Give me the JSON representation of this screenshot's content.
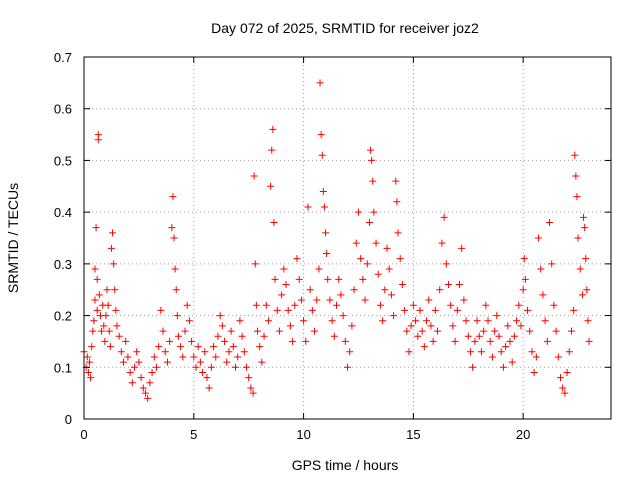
{
  "chart_data": {
    "type": "scatter",
    "title": "Day 072 of 2025, SRMTID for receiver joz2",
    "xlabel": "GPS time / hours",
    "ylabel": "SRMTID / TECUs",
    "xlim": [
      0,
      24
    ],
    "ylim": [
      0,
      0.7
    ],
    "xticks": [
      0,
      5,
      10,
      15,
      20
    ],
    "yticks": [
      0,
      0.1,
      0.2,
      0.3,
      0.4,
      0.5,
      0.6,
      0.7
    ],
    "xtick_labels": [
      "0",
      "5",
      "10",
      "15",
      "20"
    ],
    "ytick_labels": [
      "0",
      "0.1",
      "0.2",
      "0.3",
      "0.4",
      "0.5",
      "0.6",
      "0.7"
    ],
    "grid": true,
    "marker": "+",
    "color": "#ff0000",
    "series": [
      {
        "name": "SRMTID",
        "points": [
          [
            0.0,
            0.13
          ],
          [
            0.1,
            0.1
          ],
          [
            0.15,
            0.12
          ],
          [
            0.2,
            0.09
          ],
          [
            0.25,
            0.11
          ],
          [
            0.3,
            0.08
          ],
          [
            0.35,
            0.14
          ],
          [
            0.4,
            0.17
          ],
          [
            0.45,
            0.19
          ],
          [
            0.5,
            0.23
          ],
          [
            0.5,
            0.29
          ],
          [
            0.55,
            0.37
          ],
          [
            0.6,
            0.27
          ],
          [
            0.6,
            0.21
          ],
          [
            0.65,
            0.55
          ],
          [
            0.65,
            0.54
          ],
          [
            0.7,
            0.24
          ],
          [
            0.75,
            0.2
          ],
          [
            0.8,
            0.17
          ],
          [
            0.85,
            0.22
          ],
          [
            0.9,
            0.18
          ],
          [
            0.95,
            0.15
          ],
          [
            1.0,
            0.2
          ],
          [
            1.05,
            0.25
          ],
          [
            1.1,
            0.22
          ],
          [
            1.15,
            0.17
          ],
          [
            1.2,
            0.14
          ],
          [
            1.25,
            0.33
          ],
          [
            1.3,
            0.36
          ],
          [
            1.35,
            0.3
          ],
          [
            1.4,
            0.25
          ],
          [
            1.45,
            0.21
          ],
          [
            1.5,
            0.18
          ],
          [
            1.6,
            0.16
          ],
          [
            1.7,
            0.13
          ],
          [
            1.8,
            0.11
          ],
          [
            1.9,
            0.15
          ],
          [
            2.0,
            0.12
          ],
          [
            2.1,
            0.09
          ],
          [
            2.2,
            0.07
          ],
          [
            2.3,
            0.1
          ],
          [
            2.4,
            0.13
          ],
          [
            2.5,
            0.11
          ],
          [
            2.6,
            0.08
          ],
          [
            2.7,
            0.06
          ],
          [
            2.8,
            0.05
          ],
          [
            2.9,
            0.04
          ],
          [
            3.0,
            0.07
          ],
          [
            3.1,
            0.09
          ],
          [
            3.2,
            0.12
          ],
          [
            3.3,
            0.1
          ],
          [
            3.4,
            0.14
          ],
          [
            3.5,
            0.21
          ],
          [
            3.6,
            0.17
          ],
          [
            3.7,
            0.13
          ],
          [
            3.8,
            0.11
          ],
          [
            3.9,
            0.15
          ],
          [
            4.0,
            0.37
          ],
          [
            4.05,
            0.43
          ],
          [
            4.1,
            0.35
          ],
          [
            4.15,
            0.29
          ],
          [
            4.2,
            0.25
          ],
          [
            4.25,
            0.2
          ],
          [
            4.3,
            0.16
          ],
          [
            4.4,
            0.14
          ],
          [
            4.5,
            0.12
          ],
          [
            4.6,
            0.17
          ],
          [
            4.7,
            0.22
          ],
          [
            4.8,
            0.19
          ],
          [
            4.9,
            0.15
          ],
          [
            5.0,
            0.12
          ],
          [
            5.1,
            0.1
          ],
          [
            5.2,
            0.14
          ],
          [
            5.3,
            0.11
          ],
          [
            5.4,
            0.09
          ],
          [
            5.5,
            0.13
          ],
          [
            5.6,
            0.08
          ],
          [
            5.7,
            0.06
          ],
          [
            5.8,
            0.1
          ],
          [
            5.9,
            0.14
          ],
          [
            6.0,
            0.12
          ],
          [
            6.1,
            0.16
          ],
          [
            6.2,
            0.2
          ],
          [
            6.3,
            0.18
          ],
          [
            6.4,
            0.15
          ],
          [
            6.5,
            0.11
          ],
          [
            6.6,
            0.13
          ],
          [
            6.7,
            0.17
          ],
          [
            6.8,
            0.14
          ],
          [
            6.9,
            0.1
          ],
          [
            7.0,
            0.12
          ],
          [
            7.1,
            0.19
          ],
          [
            7.2,
            0.16
          ],
          [
            7.3,
            0.13
          ],
          [
            7.4,
            0.1
          ],
          [
            7.5,
            0.08
          ],
          [
            7.6,
            0.06
          ],
          [
            7.7,
            0.05
          ],
          [
            7.75,
            0.47
          ],
          [
            7.8,
            0.3
          ],
          [
            7.85,
            0.22
          ],
          [
            7.9,
            0.17
          ],
          [
            8.0,
            0.14
          ],
          [
            8.1,
            0.11
          ],
          [
            8.2,
            0.16
          ],
          [
            8.3,
            0.22
          ],
          [
            8.4,
            0.19
          ],
          [
            8.5,
            0.45
          ],
          [
            8.55,
            0.52
          ],
          [
            8.6,
            0.56
          ],
          [
            8.65,
            0.38
          ],
          [
            8.7,
            0.27
          ],
          [
            8.8,
            0.21
          ],
          [
            8.9,
            0.17
          ],
          [
            9.0,
            0.24
          ],
          [
            9.1,
            0.29
          ],
          [
            9.2,
            0.26
          ],
          [
            9.3,
            0.21
          ],
          [
            9.4,
            0.18
          ],
          [
            9.5,
            0.15
          ],
          [
            9.6,
            0.22
          ],
          [
            9.7,
            0.31
          ],
          [
            9.8,
            0.27
          ],
          [
            9.9,
            0.23
          ],
          [
            10.0,
            0.19
          ],
          [
            10.1,
            0.15
          ],
          [
            10.2,
            0.41
          ],
          [
            10.3,
            0.25
          ],
          [
            10.4,
            0.21
          ],
          [
            10.5,
            0.17
          ],
          [
            10.6,
            0.23
          ],
          [
            10.7,
            0.29
          ],
          [
            10.75,
            0.65
          ],
          [
            10.8,
            0.55
          ],
          [
            10.85,
            0.51
          ],
          [
            10.9,
            0.44
          ],
          [
            10.95,
            0.41
          ],
          [
            11.0,
            0.36
          ],
          [
            11.05,
            0.32
          ],
          [
            11.1,
            0.27
          ],
          [
            11.2,
            0.23
          ],
          [
            11.3,
            0.19
          ],
          [
            11.4,
            0.16
          ],
          [
            11.5,
            0.22
          ],
          [
            11.6,
            0.27
          ],
          [
            11.7,
            0.24
          ],
          [
            11.8,
            0.2
          ],
          [
            11.9,
            0.15
          ],
          [
            12.0,
            0.1
          ],
          [
            12.1,
            0.13
          ],
          [
            12.2,
            0.18
          ],
          [
            12.3,
            0.25
          ],
          [
            12.4,
            0.34
          ],
          [
            12.5,
            0.4
          ],
          [
            12.6,
            0.31
          ],
          [
            12.7,
            0.27
          ],
          [
            12.8,
            0.23
          ],
          [
            12.9,
            0.3
          ],
          [
            13.0,
            0.38
          ],
          [
            13.05,
            0.52
          ],
          [
            13.1,
            0.5
          ],
          [
            13.15,
            0.46
          ],
          [
            13.2,
            0.4
          ],
          [
            13.3,
            0.34
          ],
          [
            13.4,
            0.28
          ],
          [
            13.5,
            0.22
          ],
          [
            13.6,
            0.19
          ],
          [
            13.7,
            0.25
          ],
          [
            13.8,
            0.33
          ],
          [
            13.9,
            0.29
          ],
          [
            14.0,
            0.24
          ],
          [
            14.1,
            0.2
          ],
          [
            14.2,
            0.46
          ],
          [
            14.25,
            0.42
          ],
          [
            14.3,
            0.36
          ],
          [
            14.4,
            0.31
          ],
          [
            14.5,
            0.26
          ],
          [
            14.6,
            0.21
          ],
          [
            14.7,
            0.17
          ],
          [
            14.8,
            0.13
          ],
          [
            14.9,
            0.18
          ],
          [
            15.0,
            0.22
          ],
          [
            15.1,
            0.19
          ],
          [
            15.2,
            0.16
          ],
          [
            15.3,
            0.21
          ],
          [
            15.4,
            0.17
          ],
          [
            15.5,
            0.14
          ],
          [
            15.6,
            0.19
          ],
          [
            15.7,
            0.23
          ],
          [
            15.8,
            0.18
          ],
          [
            15.9,
            0.15
          ],
          [
            16.0,
            0.21
          ],
          [
            16.1,
            0.17
          ],
          [
            16.2,
            0.25
          ],
          [
            16.3,
            0.34
          ],
          [
            16.4,
            0.39
          ],
          [
            16.5,
            0.3
          ],
          [
            16.6,
            0.26
          ],
          [
            16.7,
            0.22
          ],
          [
            16.8,
            0.18
          ],
          [
            16.9,
            0.15
          ],
          [
            17.0,
            0.21
          ],
          [
            17.1,
            0.26
          ],
          [
            17.2,
            0.33
          ],
          [
            17.3,
            0.23
          ],
          [
            17.4,
            0.19
          ],
          [
            17.5,
            0.16
          ],
          [
            17.6,
            0.13
          ],
          [
            17.7,
            0.1
          ],
          [
            17.8,
            0.15
          ],
          [
            17.9,
            0.19
          ],
          [
            18.0,
            0.16
          ],
          [
            18.1,
            0.13
          ],
          [
            18.2,
            0.17
          ],
          [
            18.3,
            0.22
          ],
          [
            18.4,
            0.19
          ],
          [
            18.5,
            0.15
          ],
          [
            18.6,
            0.12
          ],
          [
            18.7,
            0.17
          ],
          [
            18.8,
            0.2
          ],
          [
            18.9,
            0.16
          ],
          [
            19.0,
            0.13
          ],
          [
            19.1,
            0.1
          ],
          [
            19.2,
            0.14
          ],
          [
            19.3,
            0.18
          ],
          [
            19.4,
            0.15
          ],
          [
            19.5,
            0.11
          ],
          [
            19.6,
            0.16
          ],
          [
            19.7,
            0.19
          ],
          [
            19.8,
            0.22
          ],
          [
            19.9,
            0.18
          ],
          [
            20.0,
            0.25
          ],
          [
            20.05,
            0.31
          ],
          [
            20.1,
            0.27
          ],
          [
            20.2,
            0.21
          ],
          [
            20.3,
            0.17
          ],
          [
            20.4,
            0.13
          ],
          [
            20.5,
            0.09
          ],
          [
            20.6,
            0.12
          ],
          [
            20.7,
            0.35
          ],
          [
            20.8,
            0.29
          ],
          [
            20.9,
            0.24
          ],
          [
            21.0,
            0.19
          ],
          [
            21.1,
            0.15
          ],
          [
            21.2,
            0.38
          ],
          [
            21.3,
            0.3
          ],
          [
            21.4,
            0.22
          ],
          [
            21.5,
            0.17
          ],
          [
            21.6,
            0.12
          ],
          [
            21.7,
            0.08
          ],
          [
            21.8,
            0.06
          ],
          [
            21.9,
            0.05
          ],
          [
            22.0,
            0.09
          ],
          [
            22.1,
            0.13
          ],
          [
            22.2,
            0.17
          ],
          [
            22.3,
            0.21
          ],
          [
            22.35,
            0.51
          ],
          [
            22.4,
            0.47
          ],
          [
            22.45,
            0.43
          ],
          [
            22.5,
            0.35
          ],
          [
            22.6,
            0.29
          ],
          [
            22.7,
            0.24
          ],
          [
            22.75,
            0.39
          ],
          [
            22.8,
            0.37
          ],
          [
            22.85,
            0.31
          ],
          [
            22.9,
            0.25
          ],
          [
            22.95,
            0.19
          ],
          [
            23.0,
            0.15
          ]
        ]
      }
    ]
  }
}
